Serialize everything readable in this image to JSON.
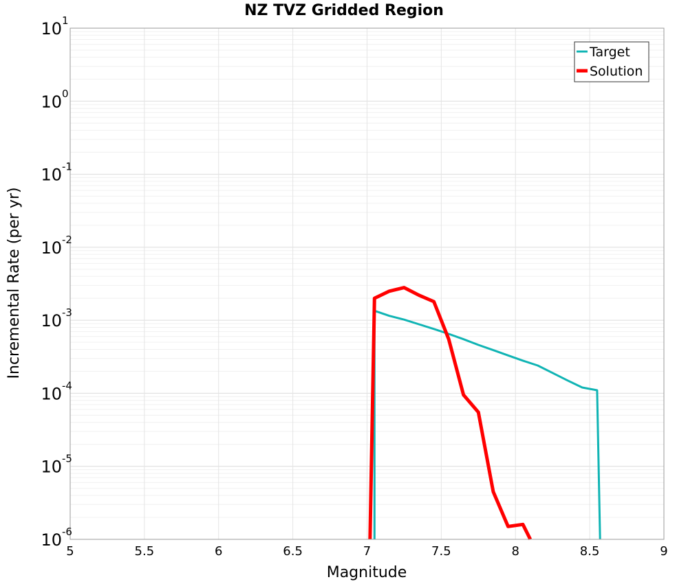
{
  "chart_data": {
    "type": "line",
    "title": "NZ TVZ Gridded Region",
    "xlabel": "Magnitude",
    "ylabel": "Incremental Rate (per yr)",
    "xlim": [
      5,
      9
    ],
    "ylim": [
      1e-06,
      10
    ],
    "yscale": "log",
    "grid": true,
    "legend_position": "top-right",
    "x_ticks": [
      "5",
      "5.5",
      "6",
      "6.5",
      "7",
      "7.5",
      "8",
      "8.5",
      "9"
    ],
    "x_tick_values": [
      5,
      5.5,
      6,
      6.5,
      7,
      7.5,
      8,
      8.5,
      9
    ],
    "y_tick_base": "10",
    "y_tick_exponents": [
      "1",
      "0",
      "-1",
      "-2",
      "-3",
      "-4",
      "-5",
      "-6"
    ],
    "series": [
      {
        "name": "Target",
        "color": "#10b4b4",
        "x": [
          7.05,
          7.05,
          7.15,
          7.25,
          7.35,
          7.45,
          7.55,
          7.65,
          7.75,
          7.85,
          7.95,
          8.05,
          8.15,
          8.25,
          8.35,
          8.45,
          8.55,
          8.57
        ],
        "y": [
          1e-06,
          0.00135,
          0.00115,
          0.00102,
          0.00088,
          0.00076,
          0.00065,
          0.00055,
          0.00046,
          0.00039,
          0.00033,
          0.00028,
          0.00024,
          0.00019,
          0.00015,
          0.00012,
          0.00011,
          1e-06
        ]
      },
      {
        "name": "Solution",
        "color": "#ff0000",
        "x": [
          7.02,
          7.05,
          7.15,
          7.25,
          7.35,
          7.45,
          7.55,
          7.65,
          7.75,
          7.85,
          7.95,
          8.05,
          8.1
        ],
        "y": [
          1e-06,
          0.002,
          0.0025,
          0.0028,
          0.0022,
          0.0018,
          0.00055,
          9.5e-05,
          5.5e-05,
          4.5e-06,
          1.5e-06,
          1.6e-06,
          1e-06
        ]
      }
    ]
  }
}
